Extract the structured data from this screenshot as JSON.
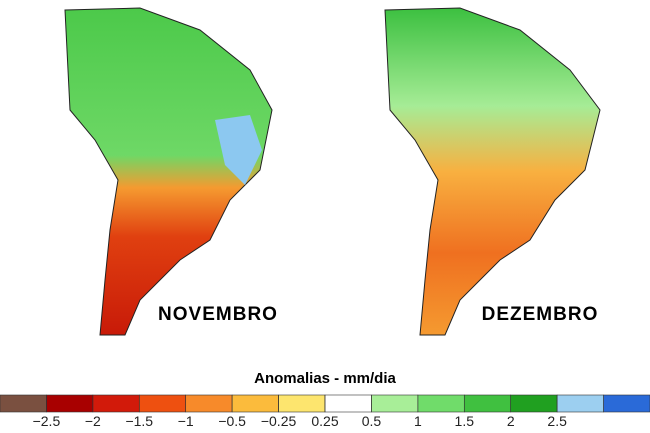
{
  "maps": [
    {
      "label": "NOVEMBRO"
    },
    {
      "label": "DEZEMBRO"
    }
  ],
  "colorbar": {
    "title": "Anomalias - mm/dia",
    "colors": [
      "#7a5040",
      "#a80000",
      "#d21a0a",
      "#ee5010",
      "#f78a2a",
      "#fbbb3c",
      "#fde56e",
      "#ffffff",
      "#a8ee98",
      "#70dc6a",
      "#40c040",
      "#20a020",
      "#9ccff0",
      "#2a6ad8"
    ],
    "ticks": [
      {
        "value": -2.5,
        "label": "−2.5"
      },
      {
        "value": -2,
        "label": "−2"
      },
      {
        "value": -1.5,
        "label": "−1.5"
      },
      {
        "value": -1,
        "label": "−1"
      },
      {
        "value": -0.5,
        "label": "−0.5"
      },
      {
        "value": -0.25,
        "label": "−0.25"
      },
      0.25,
      0.5,
      1,
      1.5,
      2,
      2.5
    ]
  }
}
